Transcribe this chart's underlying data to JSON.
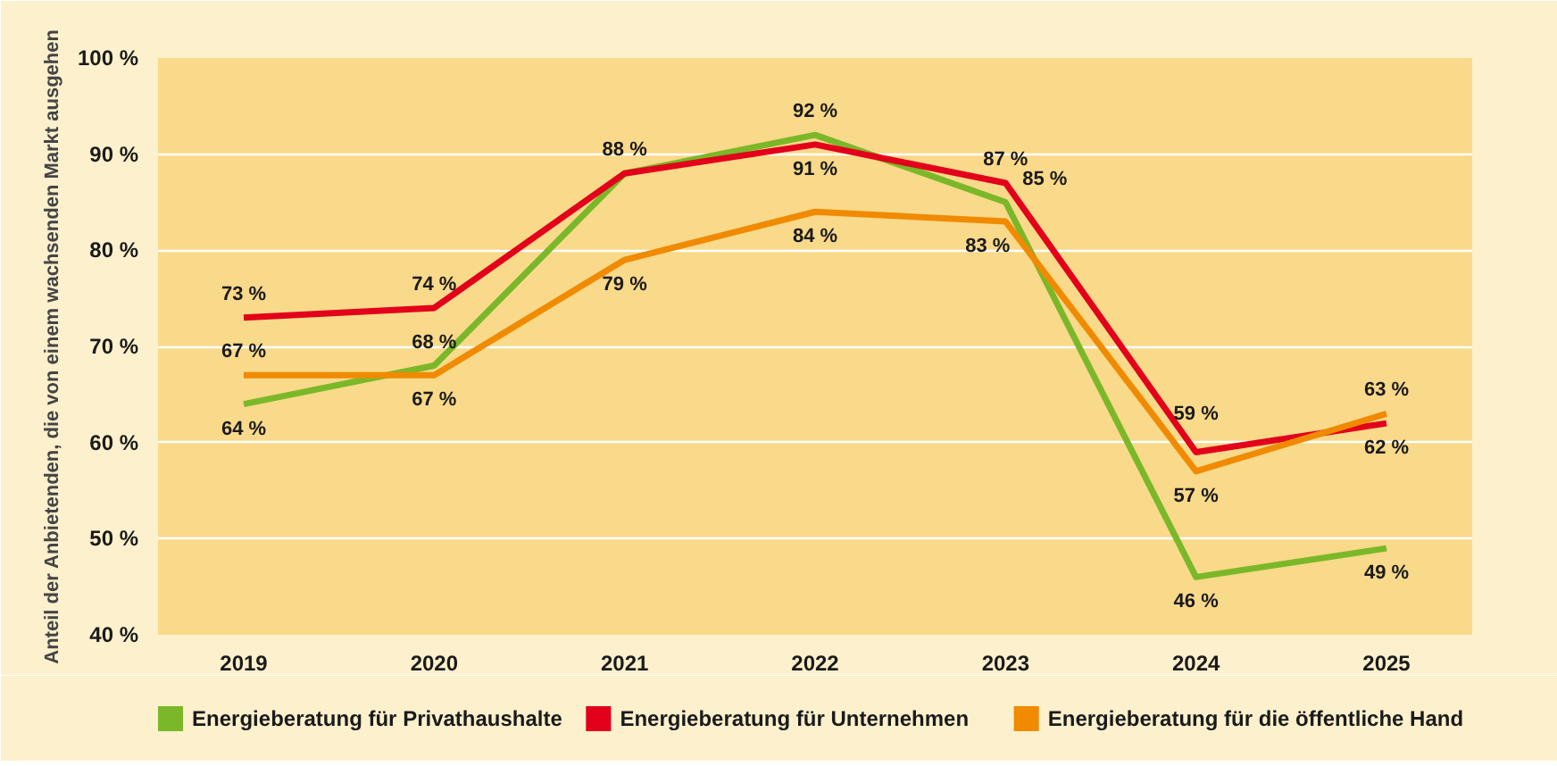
{
  "chart_data": {
    "type": "line",
    "ylabel": "Anteil der Anbietenden, die von einem wachsenden Markt ausgehen",
    "x": [
      2019,
      2020,
      2021,
      2022,
      2023,
      2024,
      2025
    ],
    "xlim": [
      2018.55,
      2025.45
    ],
    "xticks": [
      2019,
      2020,
      2021,
      2022,
      2023,
      2024,
      2025
    ],
    "ylim": [
      40,
      100
    ],
    "yticks": [
      {
        "value": 40,
        "label": "40 %"
      },
      {
        "value": 50,
        "label": "50 %"
      },
      {
        "value": 60,
        "label": "60 %"
      },
      {
        "value": 70,
        "label": "70 %"
      },
      {
        "value": 80,
        "label": "80 %"
      },
      {
        "value": 90,
        "label": "90 %"
      },
      {
        "value": 100,
        "label": "100 %"
      }
    ],
    "grid": "y",
    "legend": "bottom",
    "marker": "none",
    "line_style": "solid",
    "series": [
      {
        "name": "Energieberatung für Privathaushalte",
        "color": "#7ab829",
        "values": [
          64,
          68,
          88,
          92,
          85,
          46,
          49
        ],
        "value_labels": [
          "64 %",
          "68 %",
          "88 %",
          "92 %",
          "85 %",
          "46 %",
          "49 %"
        ]
      },
      {
        "name": "Energieberatung für Unternehmen",
        "color": "#e2001a",
        "values": [
          73,
          74,
          88,
          91,
          87,
          59,
          62
        ],
        "value_labels": [
          "73 %",
          "74 %",
          null,
          "91 %",
          "87 %",
          "59 %",
          "62 %"
        ]
      },
      {
        "name": "Energieberatung für die öffentliche Hand",
        "color": "#f08a00",
        "values": [
          67,
          67,
          79,
          84,
          83,
          57,
          63
        ],
        "value_labels": [
          "67 %",
          "67 %",
          "79 %",
          "84 %",
          "83 %",
          "57 %",
          "63 %"
        ]
      }
    ]
  }
}
